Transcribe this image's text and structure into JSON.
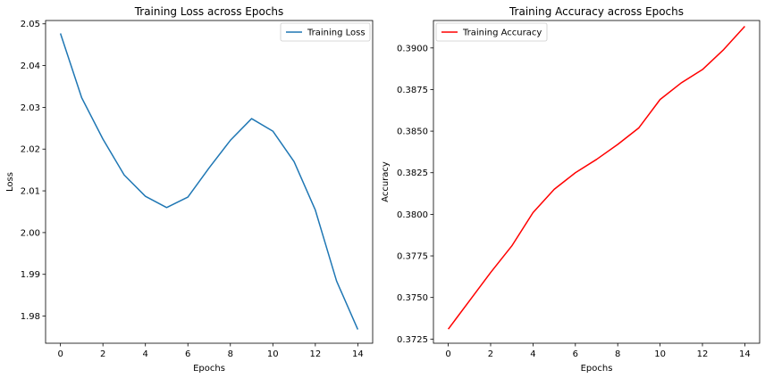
{
  "chart_data": [
    {
      "type": "line",
      "title": "Training Loss across Epochs",
      "xlabel": "Epochs",
      "ylabel": "Loss",
      "xlim": [
        -0.7,
        14.7
      ],
      "ylim": [
        1.9735,
        2.0508
      ],
      "xticks": [
        "0",
        "2",
        "4",
        "6",
        "8",
        "10",
        "12",
        "14"
      ],
      "yticks": [
        "1.98",
        "1.99",
        "2.00",
        "2.01",
        "2.02",
        "2.03",
        "2.04",
        "2.05"
      ],
      "legend_position": "top-right",
      "grid": false,
      "series": [
        {
          "name": "Training Loss",
          "color": "#1f77b4",
          "x": [
            0,
            1,
            2,
            3,
            4,
            5,
            6,
            7,
            8,
            9,
            10,
            11,
            12,
            13,
            14
          ],
          "values": [
            2.0477,
            2.0323,
            2.0224,
            2.0138,
            2.0087,
            2.006,
            2.0085,
            2.0155,
            2.0221,
            2.0273,
            2.0243,
            2.017,
            2.0054,
            1.9884,
            1.9768
          ]
        }
      ]
    },
    {
      "type": "line",
      "title": "Training Accuracy across Epochs",
      "xlabel": "Epochs",
      "ylabel": "Accuracy",
      "xlim": [
        -0.7,
        14.7
      ],
      "ylim": [
        0.37225,
        0.39165
      ],
      "xticks": [
        "0",
        "2",
        "4",
        "6",
        "8",
        "10",
        "12",
        "14"
      ],
      "yticks": [
        "0.3725",
        "0.3750",
        "0.3775",
        "0.3800",
        "0.3825",
        "0.3850",
        "0.3875",
        "0.3900"
      ],
      "legend_position": "top-left",
      "grid": false,
      "series": [
        {
          "name": "Training Accuracy",
          "color": "#ff0000",
          "x": [
            0,
            1,
            2,
            3,
            4,
            5,
            6,
            7,
            8,
            9,
            10,
            11,
            12,
            13,
            14
          ],
          "values": [
            0.3731,
            0.3748,
            0.3765,
            0.3781,
            0.3801,
            0.3815,
            0.3825,
            0.3833,
            0.3842,
            0.3852,
            0.3869,
            0.3879,
            0.3887,
            0.3899,
            0.3913
          ]
        }
      ]
    }
  ]
}
